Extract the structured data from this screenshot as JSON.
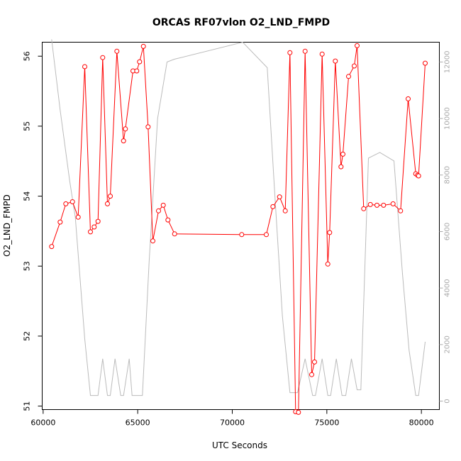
{
  "chart_data": {
    "type": "line",
    "title": "ORCAS RF07vlon O2_LND_FMPD",
    "xlabel": "UTC Seconds",
    "ylabel": "O2_LND_FMPD",
    "xlim": [
      59950,
      80950
    ],
    "ylim": [
      50.95,
      56.2
    ],
    "y2lim": [
      -300,
      12700
    ],
    "xticks": [
      60000,
      65000,
      70000,
      75000,
      80000
    ],
    "yticks": [
      51,
      52,
      53,
      54,
      55,
      56
    ],
    "y2ticks": [
      0,
      2000,
      4000,
      6000,
      8000,
      10000,
      12000
    ],
    "grid": false,
    "legend": "none",
    "colors": {
      "primary": "#ff0000",
      "secondary": "#bbbbbb",
      "right_axis": "#aaaaaa"
    },
    "series": [
      {
        "axis": "left",
        "style": "line-with-open-circles",
        "x": [
          60450,
          60900,
          61200,
          61550,
          61850,
          62200,
          62500,
          62700,
          62900,
          63150,
          63400,
          63550,
          63900,
          64250,
          64350,
          64750,
          64950,
          65100,
          65300,
          65550,
          65800,
          66100,
          66350,
          66600,
          66950,
          70500,
          71800,
          72150,
          72500,
          72800,
          73050,
          73350,
          73500,
          73850,
          74200,
          74350,
          74750,
          75050,
          75150,
          75450,
          75750,
          75850,
          76150,
          76450,
          76600,
          76950,
          77300,
          77650,
          78000,
          78500,
          78900,
          79300,
          79700,
          79800,
          79850,
          80200
        ],
        "y": [
          53.28,
          53.63,
          53.89,
          53.92,
          53.7,
          55.85,
          53.49,
          53.56,
          53.64,
          55.98,
          53.89,
          54.0,
          56.07,
          54.79,
          54.96,
          55.79,
          55.79,
          55.92,
          56.14,
          54.99,
          53.36,
          53.79,
          53.87,
          53.66,
          53.46,
          53.45,
          53.45,
          53.85,
          53.99,
          53.79,
          56.05,
          50.92,
          50.91,
          56.07,
          51.45,
          51.63,
          56.03,
          53.03,
          53.48,
          55.93,
          54.42,
          54.6,
          55.71,
          55.86,
          56.15,
          53.82,
          53.88,
          53.87,
          53.87,
          53.89,
          53.79,
          55.39,
          54.32,
          54.3,
          54.29,
          55.9
        ]
      },
      {
        "axis": "right",
        "style": "line",
        "x": [
          60450,
          60900,
          61400,
          61700,
          62200,
          62500,
          62900,
          63150,
          63400,
          63550,
          63800,
          64100,
          64250,
          64550,
          64700,
          64950,
          65250,
          65600,
          66050,
          66550,
          66950,
          70550,
          71850,
          72250,
          72650,
          73050,
          73450,
          73850,
          74250,
          74400,
          74750,
          75050,
          75200,
          75500,
          75800,
          76000,
          76300,
          76600,
          76800,
          77200,
          77800,
          78050,
          78550,
          79000,
          79350,
          79700,
          79850,
          80200
        ],
        "y": [
          12800,
          10300,
          7800,
          6500,
          2200,
          200,
          200,
          1500,
          200,
          200,
          1500,
          200,
          200,
          1500,
          200,
          200,
          200,
          4900,
          10000,
          12000,
          12100,
          12700,
          11800,
          7300,
          3000,
          300,
          300,
          1500,
          200,
          200,
          1500,
          200,
          200,
          1500,
          200,
          200,
          1500,
          400,
          400,
          8600,
          8800,
          8700,
          8500,
          4500,
          1800,
          200,
          200,
          2100
        ]
      }
    ]
  }
}
